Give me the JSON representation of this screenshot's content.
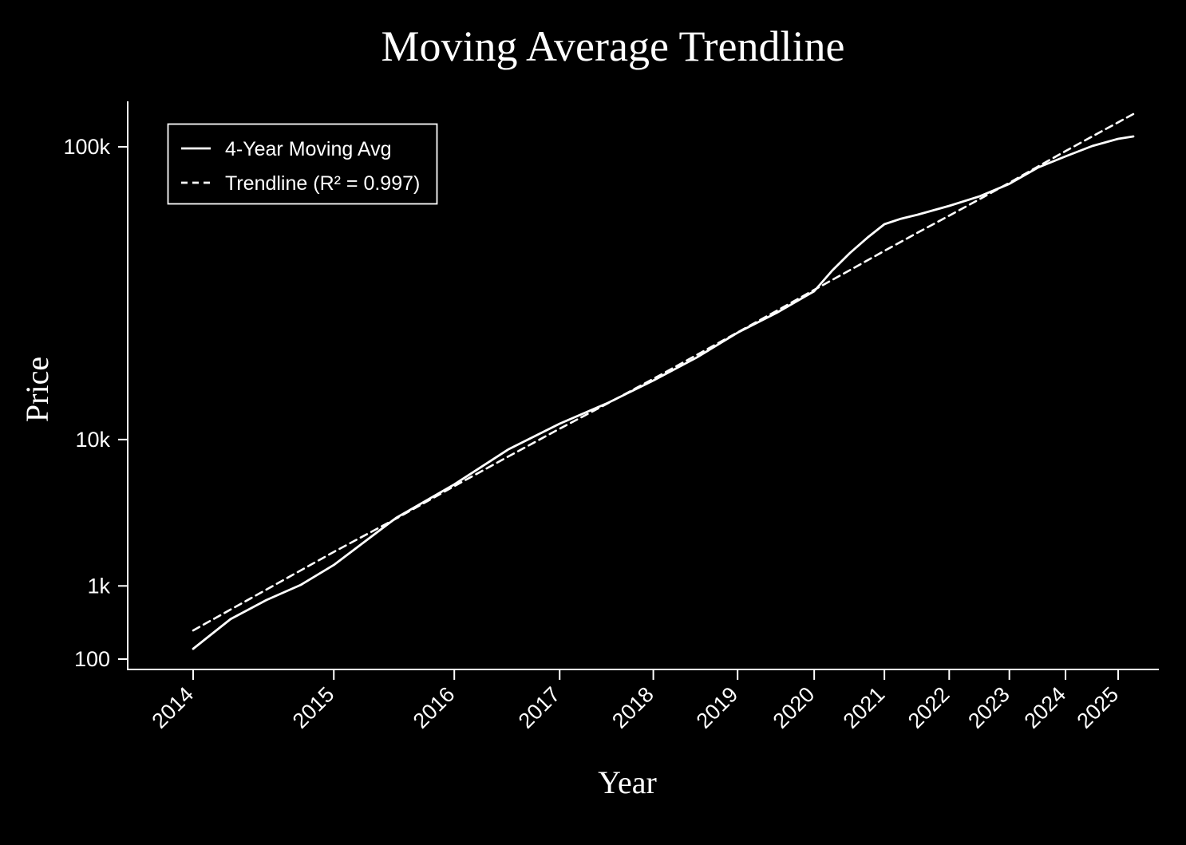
{
  "page": {
    "background": "#000000",
    "foreground": "#ffffff"
  },
  "chart_data": {
    "type": "line",
    "title": "Moving Average Trendline",
    "xlabel": "Year",
    "ylabel": "Price",
    "grid": false,
    "legend": {
      "position": "upper left",
      "entries": [
        {
          "label": "4-Year Moving Avg",
          "style": "solid",
          "color": "#ffffff"
        },
        {
          "label": "Trendline (R² = 0.997)",
          "style": "dashed",
          "color": "#ffffff"
        }
      ]
    },
    "x_scale": {
      "type": "log-time",
      "offset_year": 2008.5,
      "min_year": 2014,
      "max_year": 2025.3
    },
    "y_scale": {
      "type": "power",
      "exponent": 0.30103,
      "min": 100,
      "max": 130000
    },
    "x_ticks": [
      2014,
      2015,
      2016,
      2017,
      2018,
      2019,
      2020,
      2021,
      2022,
      2023,
      2024,
      2025
    ],
    "y_ticks": [
      {
        "value": 100,
        "label": "100"
      },
      {
        "value": 1000,
        "label": "1k"
      },
      {
        "value": 10000,
        "label": "10k"
      },
      {
        "value": 100000,
        "label": "100k"
      }
    ],
    "series": [
      {
        "name": "4-Year Moving Avg",
        "style": "solid",
        "color": "#ffffff",
        "points": [
          [
            2014.0,
            155
          ],
          [
            2014.25,
            425
          ],
          [
            2014.5,
            713
          ],
          [
            2014.75,
            1023
          ],
          [
            2015.0,
            1559
          ],
          [
            2015.5,
            3556
          ],
          [
            2016.0,
            5754
          ],
          [
            2016.5,
            8938
          ],
          [
            2017.0,
            11912
          ],
          [
            2017.5,
            14791
          ],
          [
            2018.0,
            18408
          ],
          [
            2018.5,
            22699
          ],
          [
            2019.0,
            28119
          ],
          [
            2019.5,
            33037
          ],
          [
            2020.0,
            39012
          ],
          [
            2020.25,
            45450
          ],
          [
            2020.5,
            51467
          ],
          [
            2020.75,
            57086
          ],
          [
            2021.0,
            62430
          ],
          [
            2021.25,
            64710
          ],
          [
            2021.5,
            66412
          ],
          [
            2022.0,
            70250
          ],
          [
            2022.5,
            74603
          ],
          [
            2023.0,
            80500
          ],
          [
            2023.5,
            88697
          ],
          [
            2024.0,
            94680
          ],
          [
            2024.5,
            100444
          ],
          [
            2025.0,
            104609
          ],
          [
            2025.3,
            106004
          ]
        ]
      },
      {
        "name": "Trendline (R² = 0.997)",
        "style": "dashed",
        "color": "#ffffff",
        "r_squared": 0.997,
        "points": [
          [
            2014.0,
            300
          ],
          [
            2014.5,
            919
          ],
          [
            2015.0,
            2001
          ],
          [
            2015.5,
            3515
          ],
          [
            2016.0,
            5620
          ],
          [
            2016.5,
            8216
          ],
          [
            2017.0,
            11284
          ],
          [
            2017.5,
            14729
          ],
          [
            2018.0,
            18700
          ],
          [
            2018.5,
            23213
          ],
          [
            2019.0,
            28200
          ],
          [
            2019.5,
            33558
          ],
          [
            2020.0,
            39426
          ],
          [
            2020.5,
            45601
          ],
          [
            2021.0,
            52215
          ],
          [
            2021.5,
            59009
          ],
          [
            2022.0,
            65976
          ],
          [
            2022.5,
            73324
          ],
          [
            2023.0,
            81008
          ],
          [
            2023.5,
            89243
          ],
          [
            2024.0,
            97591
          ],
          [
            2024.5,
            106019
          ],
          [
            2025.0,
            114604
          ],
          [
            2025.3,
            119852
          ]
        ]
      }
    ]
  }
}
